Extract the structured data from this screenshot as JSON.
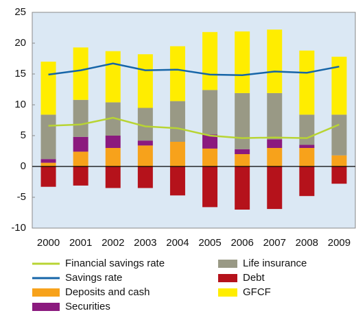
{
  "chart_data": {
    "type": "bar",
    "stacked": true,
    "categories": [
      "2000",
      "2001",
      "2002",
      "2003",
      "2004",
      "2005",
      "2006",
      "2007",
      "2008",
      "2009"
    ],
    "ylim": [
      -10,
      25
    ],
    "yticks": [
      -10,
      -5,
      0,
      5,
      10,
      15,
      20,
      25
    ],
    "series": [
      {
        "name": "Financial savings rate",
        "kind": "line",
        "color": "#b8d433",
        "values": [
          6.6,
          6.8,
          7.9,
          6.5,
          6.2,
          5.0,
          4.6,
          4.7,
          4.6,
          6.8
        ]
      },
      {
        "name": "Savings rate",
        "kind": "line",
        "color": "#1565a8",
        "values": [
          14.9,
          15.6,
          16.7,
          15.6,
          15.7,
          14.9,
          14.8,
          15.4,
          15.2,
          16.2
        ]
      },
      {
        "name": "Deposits and cash",
        "kind": "bar",
        "color": "#f7a21b",
        "values": [
          0.6,
          2.4,
          3.0,
          3.4,
          4.0,
          2.9,
          2.0,
          3.0,
          3.0,
          1.8
        ]
      },
      {
        "name": "Securities",
        "kind": "bar",
        "color": "#8b1a7e",
        "values": [
          0.6,
          2.4,
          2.0,
          0.8,
          0,
          2.3,
          0.8,
          1.4,
          0.5,
          0
        ]
      },
      {
        "name": "Life insurance",
        "kind": "bar",
        "color": "#999985",
        "values": [
          7.2,
          6.0,
          5.4,
          5.3,
          6.6,
          7.2,
          9.1,
          7.5,
          4.9,
          6.6
        ]
      },
      {
        "name": "Debt",
        "kind": "bar",
        "color": "#b5121b",
        "values": [
          -3.3,
          -3.1,
          -3.5,
          -3.5,
          -4.7,
          -6.6,
          -7.0,
          -6.9,
          -4.8,
          -2.8
        ]
      },
      {
        "name": "GFCF",
        "kind": "bar",
        "color": "#ffed00",
        "values": [
          8.6,
          8.5,
          8.3,
          8.7,
          8.9,
          9.4,
          10.0,
          10.3,
          10.4,
          9.4
        ]
      }
    ]
  }
}
